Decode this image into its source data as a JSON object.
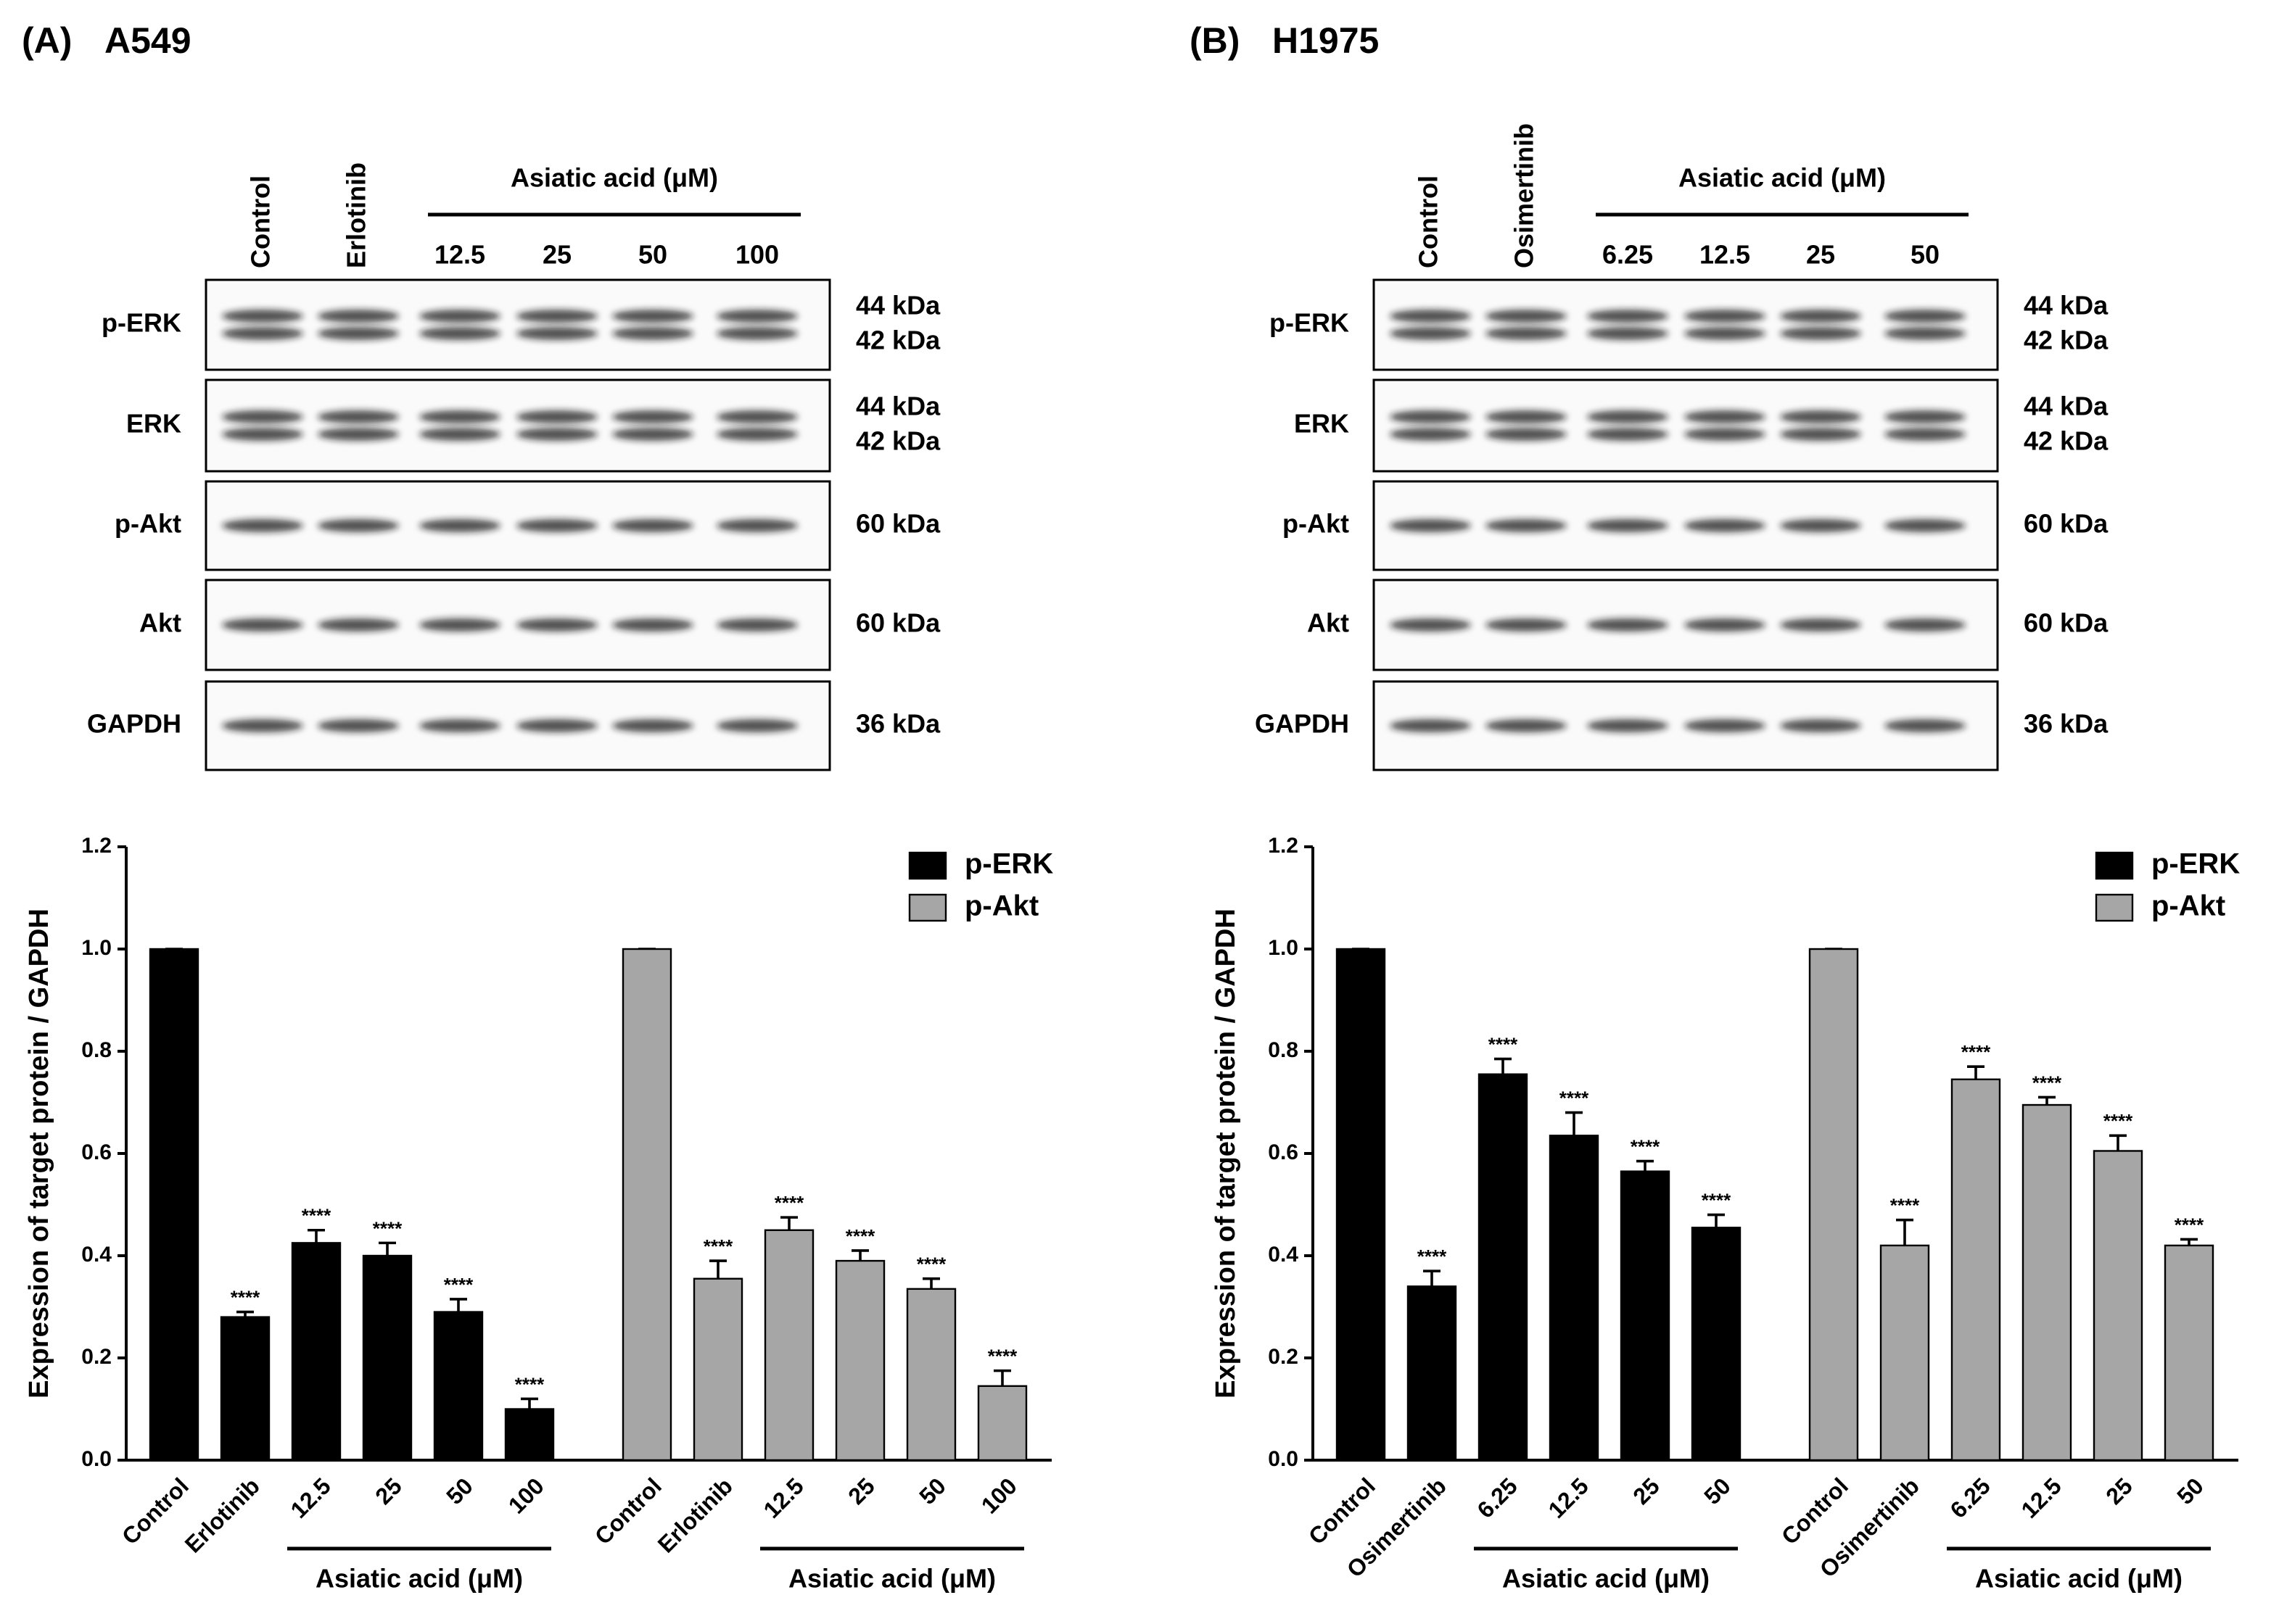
{
  "panels": [
    {
      "label": "(A)",
      "cell_line": "A549",
      "lanes": [
        "Control",
        "Erlotinib",
        "12.5",
        "25",
        "50",
        "100"
      ],
      "group_label": "Asiatic acid (μM)",
      "blots": [
        {
          "name": "p-ERK",
          "sizes": [
            "44 kDa",
            "42 kDa"
          ]
        },
        {
          "name": "ERK",
          "sizes": [
            "44 kDa",
            "42 kDa"
          ]
        },
        {
          "name": "p-Akt",
          "sizes": [
            "60 kDa"
          ]
        },
        {
          "name": "Akt",
          "sizes": [
            "60 kDa"
          ]
        },
        {
          "name": "GAPDH",
          "sizes": [
            "36 kDa"
          ]
        }
      ]
    },
    {
      "label": "(B)",
      "cell_line": "H1975",
      "lanes": [
        "Control",
        "Osimertinib",
        "6.25",
        "12.5",
        "25",
        "50"
      ],
      "group_label": "Asiatic acid (μM)",
      "blots": [
        {
          "name": "p-ERK",
          "sizes": [
            "44 kDa",
            "42 kDa"
          ]
        },
        {
          "name": "ERK",
          "sizes": [
            "44 kDa",
            "42 kDa"
          ]
        },
        {
          "name": "p-Akt",
          "sizes": [
            "60 kDa"
          ]
        },
        {
          "name": "Akt",
          "sizes": [
            "60 kDa"
          ]
        },
        {
          "name": "GAPDH",
          "sizes": [
            "36 kDa"
          ]
        }
      ]
    }
  ],
  "chart_data": [
    {
      "type": "bar",
      "ylabel": "Expression of target protein / GAPDH",
      "categories": [
        "Control",
        "Erlotinib",
        "12.5",
        "25",
        "50",
        "100"
      ],
      "group_label": "Asiatic acid (μM)",
      "series": [
        {
          "name": "p-ERK",
          "color": "#000000",
          "values": [
            1.0,
            0.28,
            0.425,
            0.4,
            0.29,
            0.1
          ],
          "errors": [
            0,
            0.01,
            0.025,
            0.025,
            0.025,
            0.02
          ],
          "significance": [
            null,
            "****",
            "****",
            "****",
            "****",
            "****"
          ]
        },
        {
          "name": "p-Akt",
          "color": "#a6a6a6",
          "values": [
            1.0,
            0.355,
            0.45,
            0.39,
            0.335,
            0.145
          ],
          "errors": [
            0,
            0.035,
            0.025,
            0.02,
            0.02,
            0.03
          ],
          "significance": [
            null,
            "****",
            "****",
            "****",
            "****",
            "****"
          ]
        }
      ],
      "ylim": [
        0,
        1.2
      ],
      "yticks": [
        {
          "value": 0,
          "label": "0.0"
        },
        0.2,
        0.4,
        0.6,
        0.8,
        {
          "value": 1,
          "label": "1.0"
        },
        1.2
      ],
      "legend": "top-right"
    },
    {
      "type": "bar",
      "ylabel": "Expression of target protein / GAPDH",
      "categories": [
        "Control",
        "Osimertinib",
        "6.25",
        "12.5",
        "25",
        "50"
      ],
      "group_label": "Asiatic acid (μM)",
      "series": [
        {
          "name": "p-ERK",
          "color": "#000000",
          "values": [
            1.0,
            0.34,
            0.755,
            0.635,
            0.565,
            0.455
          ],
          "errors": [
            0,
            0.03,
            0.03,
            0.045,
            0.02,
            0.025
          ],
          "significance": [
            null,
            "****",
            "****",
            "****",
            "****",
            "****"
          ]
        },
        {
          "name": "p-Akt",
          "color": "#a6a6a6",
          "values": [
            1.0,
            0.42,
            0.745,
            0.695,
            0.605,
            0.42
          ],
          "errors": [
            0,
            0.05,
            0.025,
            0.015,
            0.03,
            0.012
          ],
          "significance": [
            null,
            "****",
            "****",
            "****",
            "****",
            "****"
          ]
        }
      ],
      "ylim": [
        0,
        1.2
      ],
      "yticks": [
        {
          "value": 0,
          "label": "0.0"
        },
        0.2,
        0.4,
        0.6,
        0.8,
        {
          "value": 1,
          "label": "1.0"
        },
        1.2
      ],
      "legend": "top-right"
    }
  ]
}
